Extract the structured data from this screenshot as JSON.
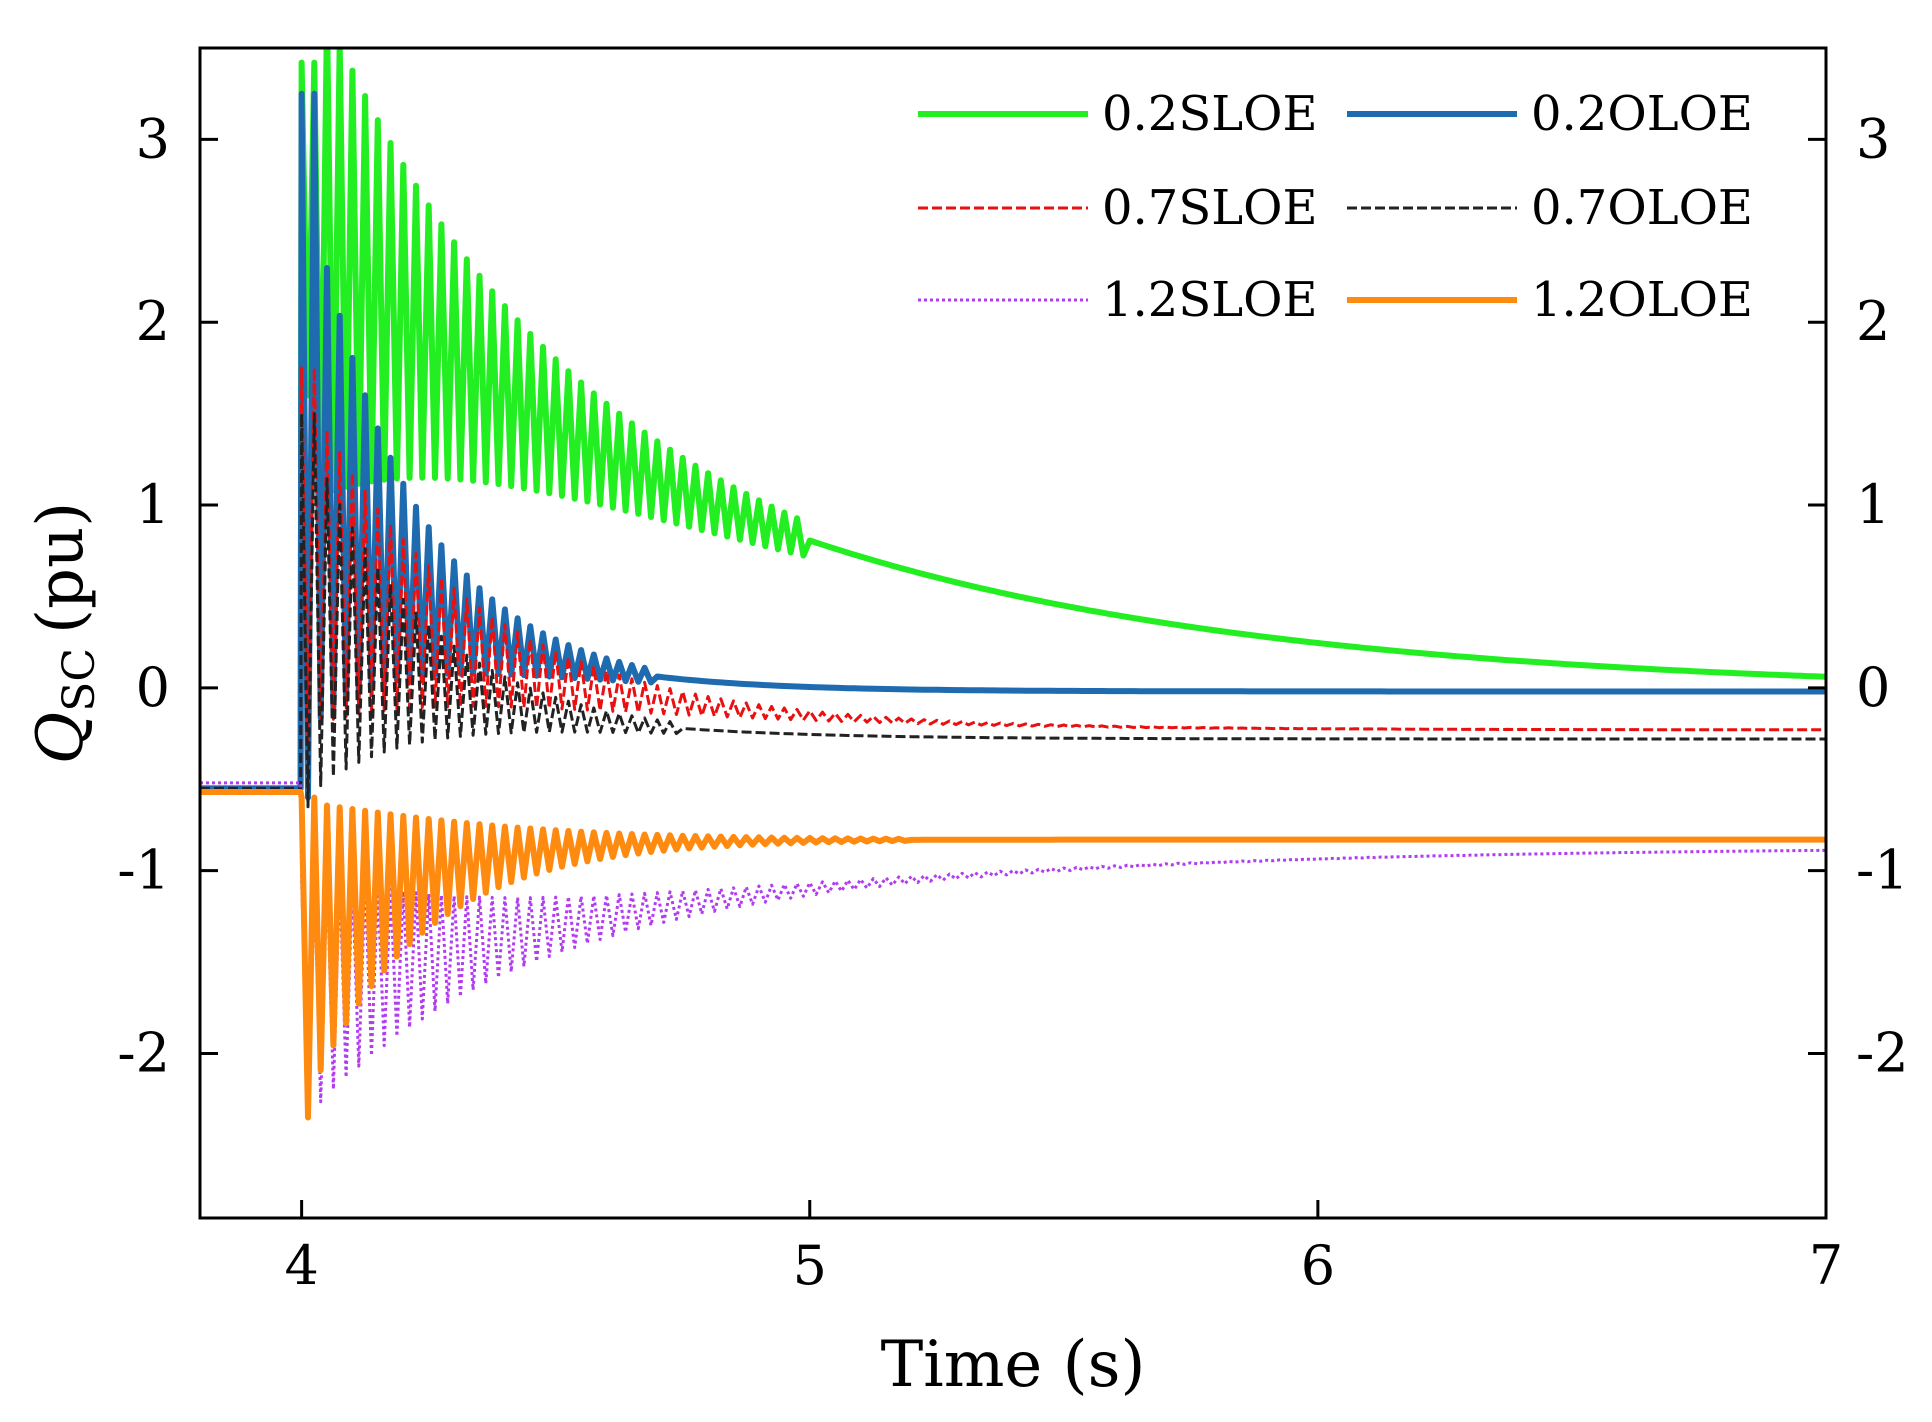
{
  "chart_data": {
    "type": "line",
    "title": "",
    "xlabel": "Time (s)",
    "ylabel_main": "Q",
    "ylabel_sub": "SC",
    "ylabel_unit": "(pu)",
    "xlim": [
      3.8,
      7.0
    ],
    "ylim": [
      -2.9,
      3.5
    ],
    "xticks": [
      4,
      5,
      6,
      7
    ],
    "xtick_labels": [
      "4",
      "5",
      "6",
      "7"
    ],
    "yticks": [
      -2,
      -1,
      0,
      1,
      2,
      3
    ],
    "ytick_labels": [
      "-2",
      "-1",
      "0",
      "1",
      "2",
      "3"
    ],
    "grid": false,
    "legend_position": "top-right",
    "legend_columns": 2,
    "fault_time": 4.0,
    "series": [
      {
        "name": "0.2SLOE",
        "color": "#22ee22",
        "dash": "solid",
        "pre": -0.55,
        "final": -0.03,
        "peak": 3.42,
        "trough": 1.6,
        "osc_amp": 1.5,
        "osc_decay": 2.8,
        "drift_tau": 0.9,
        "noise_end": 5.0,
        "width": 6
      },
      {
        "name": "0.2OLOE",
        "color": "#1f6bb0",
        "dash": "solid",
        "pre": -0.55,
        "final": -0.02,
        "peak": 3.25,
        "trough": -0.6,
        "osc_amp": 1.6,
        "osc_decay": 5.5,
        "drift_tau": 0.25,
        "noise_end": 4.7,
        "width": 6
      },
      {
        "name": "0.7SLOE",
        "color": "#e81010",
        "dash": "dashed",
        "pre": -0.55,
        "final": -0.23,
        "peak": 1.75,
        "trough": -0.3,
        "osc_amp": 0.95,
        "osc_decay": 3.6,
        "drift_tau": 0.4,
        "noise_end": 6.6,
        "width": 3
      },
      {
        "name": "0.7OLOE",
        "color": "#222222",
        "dash": "dashed",
        "pre": -0.55,
        "final": -0.28,
        "peak": 1.5,
        "trough": -0.65,
        "osc_amp": 1.05,
        "osc_decay": 4.8,
        "drift_tau": 0.3,
        "noise_end": 4.75,
        "width": 3
      },
      {
        "name": "1.2SLOE",
        "color": "#b23cf0",
        "dash": "dotted",
        "pre": -0.52,
        "final": -0.87,
        "peak": -1.05,
        "trough": -2.3,
        "osc_amp": 0.7,
        "osc_decay": 3.0,
        "drift_tau": 0.8,
        "noise_end": 6.8,
        "width": 3
      },
      {
        "name": "1.2OLOE",
        "color": "#ff8a10",
        "dash": "solid",
        "pre": -0.57,
        "final": -0.83,
        "peak": -0.6,
        "trough": -2.35,
        "osc_amp": 0.85,
        "osc_decay": 4.2,
        "drift_tau": 0.2,
        "noise_end": 5.2,
        "width": 6
      }
    ]
  }
}
